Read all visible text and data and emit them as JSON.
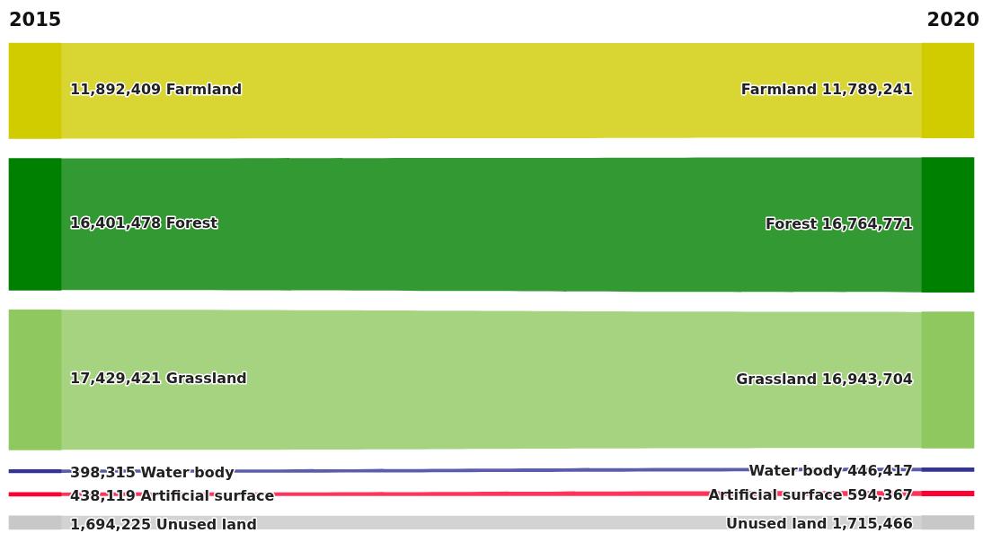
{
  "chart_data": {
    "type": "other",
    "categories": [
      "Farmland",
      "Forest",
      "Grassland",
      "Water body",
      "Artificial surface",
      "Unused land"
    ],
    "series": [
      {
        "name": "2015",
        "colors": [
          "#d0cc00",
          "#008000",
          "#90c860",
          "#333399",
          "#ff0033",
          "#c8c8c8"
        ],
        "values": [
          11892409,
          16401478,
          17429421,
          398315,
          438119,
          1694225
        ],
        "value_labels": [
          "11,892,409",
          "16,401,478",
          "17,429,421",
          "398,315",
          "438,119",
          "1,694,225"
        ]
      },
      {
        "name": "2020",
        "colors": [
          "#d0cc00",
          "#008000",
          "#90c860",
          "#333399",
          "#ff0033",
          "#c8c8c8"
        ],
        "values": [
          11789241,
          16764771,
          16943704,
          446417,
          594367,
          1715466
        ],
        "value_labels": [
          "11,789,241",
          "16,764,771",
          "16,943,704",
          "446,417",
          "594,367",
          "1,715,466"
        ]
      }
    ]
  }
}
